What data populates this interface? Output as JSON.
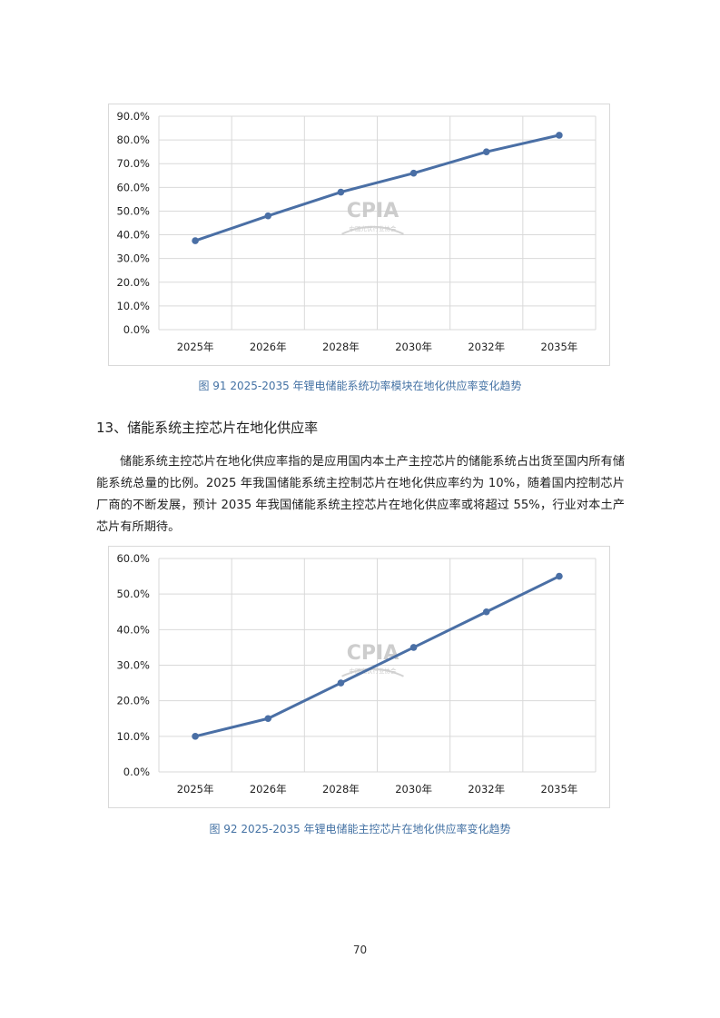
{
  "chart_data": [
    {
      "type": "line",
      "categories": [
        "2025年",
        "2026年",
        "2028年",
        "2030年",
        "2032年",
        "2035年"
      ],
      "series": [
        {
          "values": [
            37.5,
            48.0,
            58.0,
            66.0,
            75.0,
            82.0
          ]
        }
      ],
      "ylim": [
        0,
        90
      ],
      "yticks": [
        "0.0%",
        "10.0%",
        "20.0%",
        "30.0%",
        "40.0%",
        "50.0%",
        "60.0%",
        "70.0%",
        "80.0%",
        "90.0%"
      ],
      "grid": true,
      "color": "#4a6fa5",
      "watermark": {
        "logo": "CPIA",
        "sub": "中国光伏行业协会"
      }
    },
    {
      "type": "line",
      "categories": [
        "2025年",
        "2026年",
        "2028年",
        "2030年",
        "2032年",
        "2035年"
      ],
      "series": [
        {
          "values": [
            10.0,
            15.0,
            25.0,
            35.0,
            45.0,
            55.0
          ]
        }
      ],
      "ylim": [
        0,
        60
      ],
      "yticks": [
        "0.0%",
        "10.0%",
        "20.0%",
        "30.0%",
        "40.0%",
        "50.0%",
        "60.0%"
      ],
      "grid": true,
      "color": "#4a6fa5",
      "watermark": {
        "logo": "CPIA",
        "sub": "中国光伏行业协会"
      }
    }
  ],
  "captions": {
    "fig91": "图 91   2025-2035 年锂电储能系统功率模块在地化供应率变化趋势",
    "fig92": "图 92   2025-2035 年锂电储能主控芯片在地化供应率变化趋势"
  },
  "section": {
    "heading": "13、储能系统主控芯片在地化供应率",
    "paragraph": "储能系统主控芯片在地化供应率指的是应用国内本土产主控芯片的储能系统占出货至国内所有储能系统总量的比例。2025 年我国储能系统主控制芯片在地化供应率约为 10%，随着国内控制芯片厂商的不断发展，预计 2035 年我国储能系统主控芯片在地化供应率或将超过 55%，行业对本土产芯片有所期待。"
  },
  "page_number": "70"
}
